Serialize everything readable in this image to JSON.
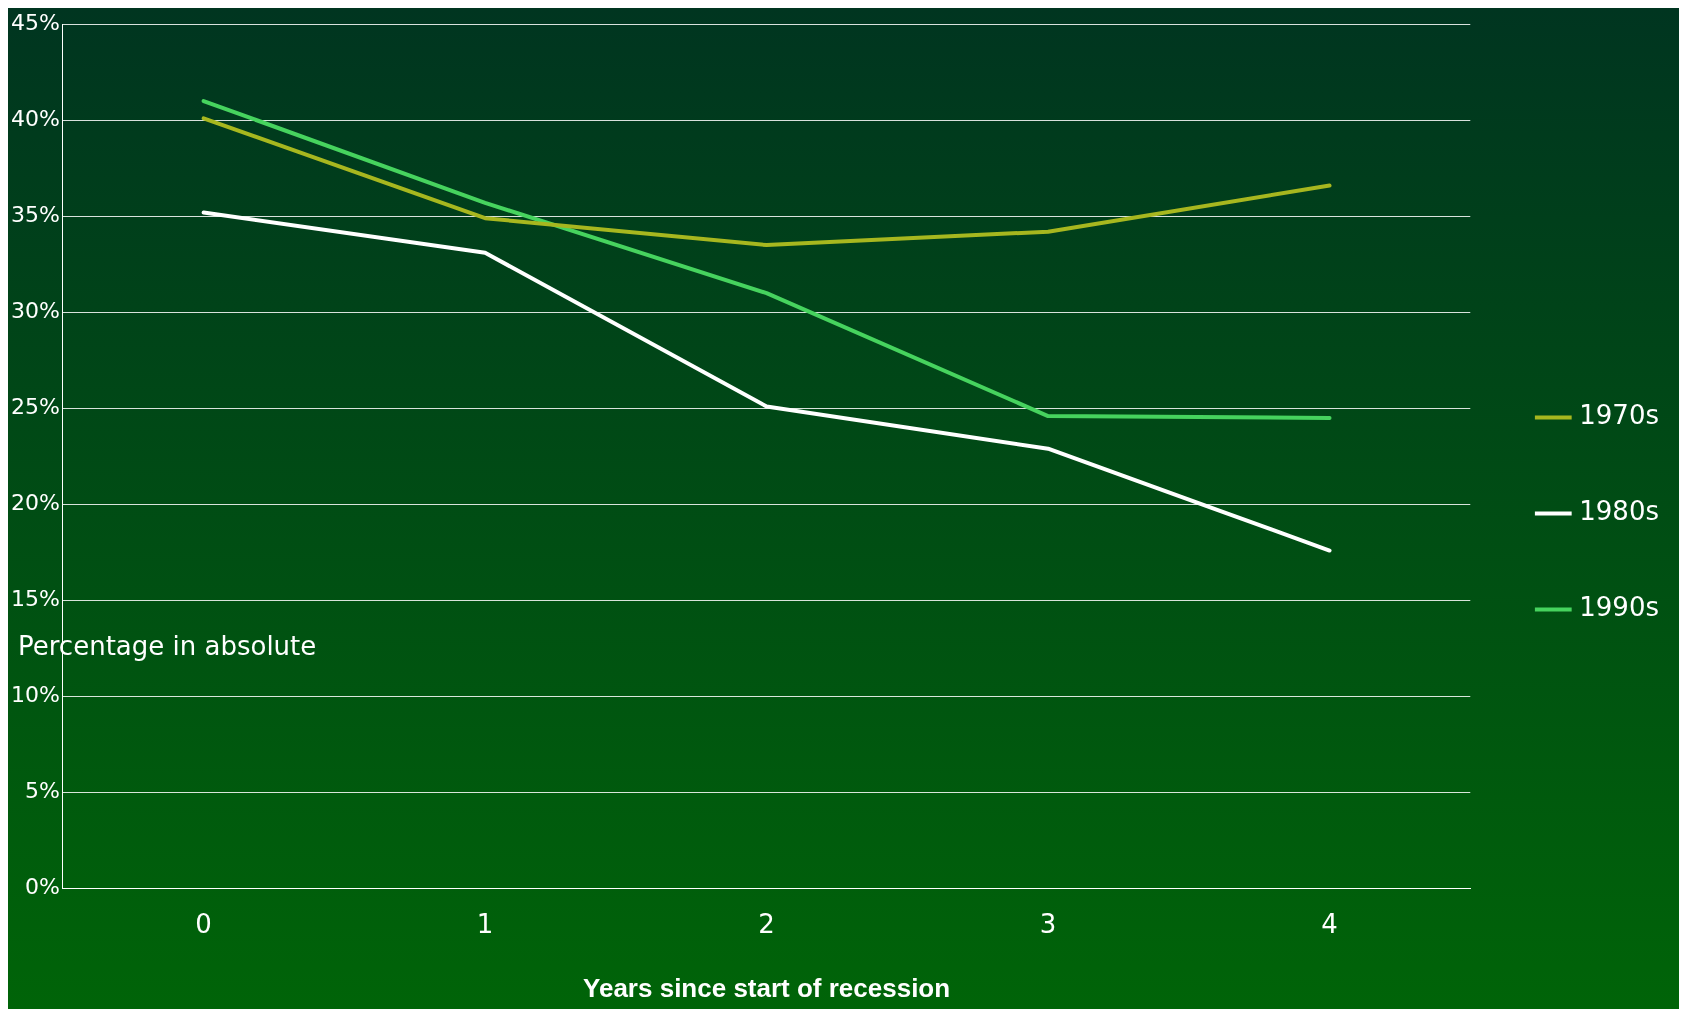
{
  "chart_data": {
    "type": "line",
    "xlabel": "Years since start of recession",
    "ylabel": "Percentage in absolute",
    "categories": [
      "0",
      "1",
      "2",
      "3",
      "4"
    ],
    "series": [
      {
        "name": "1970s",
        "color": "#a7b71f",
        "values": [
          40.1,
          34.9,
          33.5,
          34.2,
          36.6
        ]
      },
      {
        "name": "1980s",
        "color": "#ffffff",
        "values": [
          35.2,
          33.1,
          25.1,
          22.9,
          17.6
        ]
      },
      {
        "name": "1990s",
        "color": "#46d35e",
        "values": [
          41.0,
          35.7,
          31.0,
          24.6,
          24.5
        ]
      }
    ],
    "ylim": [
      0,
      45
    ],
    "yticks": [
      {
        "value": 0,
        "label": "0%"
      },
      {
        "value": 5,
        "label": "5%"
      },
      {
        "value": 10,
        "label": "10%"
      },
      {
        "value": 15,
        "label": "15%"
      },
      {
        "value": 20,
        "label": "20%"
      },
      {
        "value": 25,
        "label": "25%"
      },
      {
        "value": 30,
        "label": "30%"
      },
      {
        "value": 35,
        "label": "35%"
      },
      {
        "value": 40,
        "label": "40%"
      },
      {
        "value": 45,
        "label": "45%"
      }
    ],
    "grid": "y",
    "legend": "right",
    "marker": "none",
    "line_style": "solid"
  }
}
